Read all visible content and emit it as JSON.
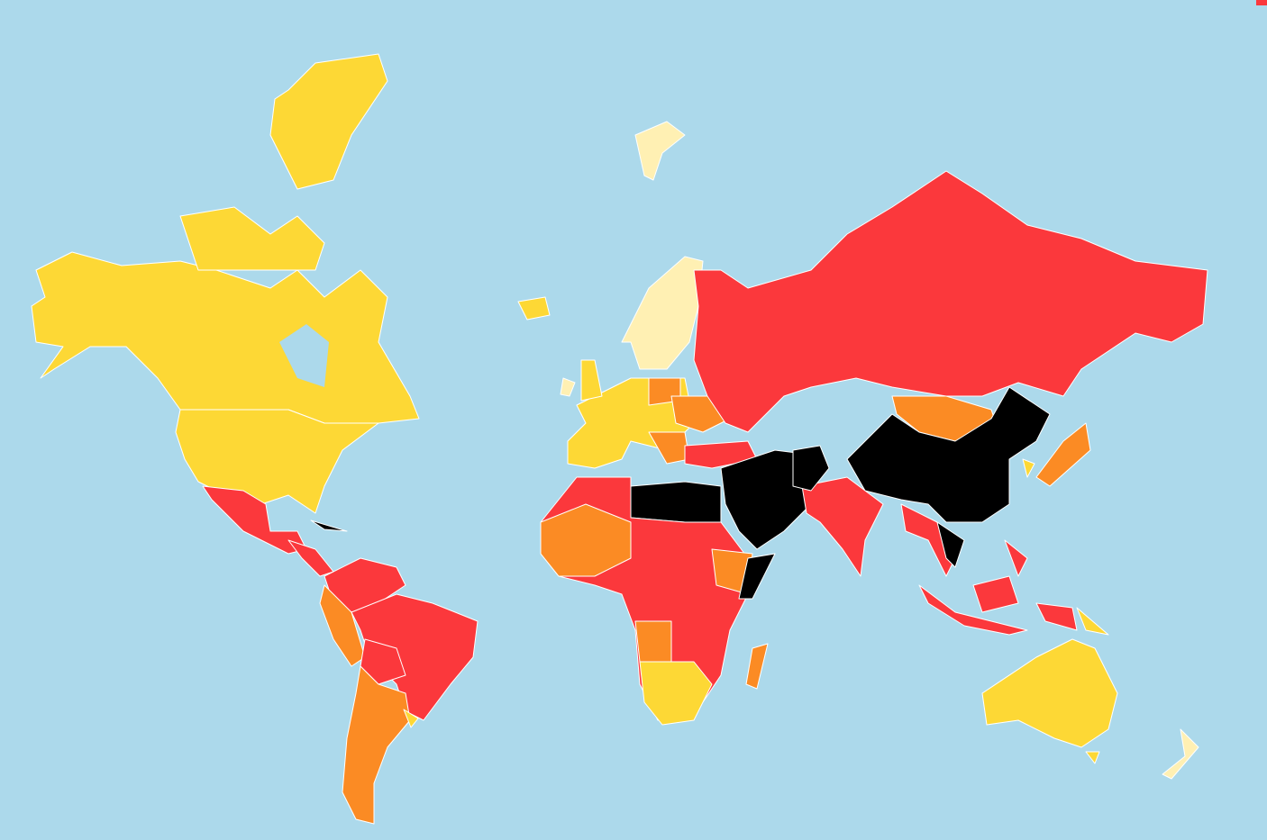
{
  "map": {
    "colors": {
      "ocean": "#acd9eb",
      "level_1": "#fff0b3",
      "level_2": "#fdd835",
      "level_3": "#fb8b24",
      "level_4": "#fb383c",
      "level_5": "#000000",
      "border": "#ffffff"
    }
  }
}
